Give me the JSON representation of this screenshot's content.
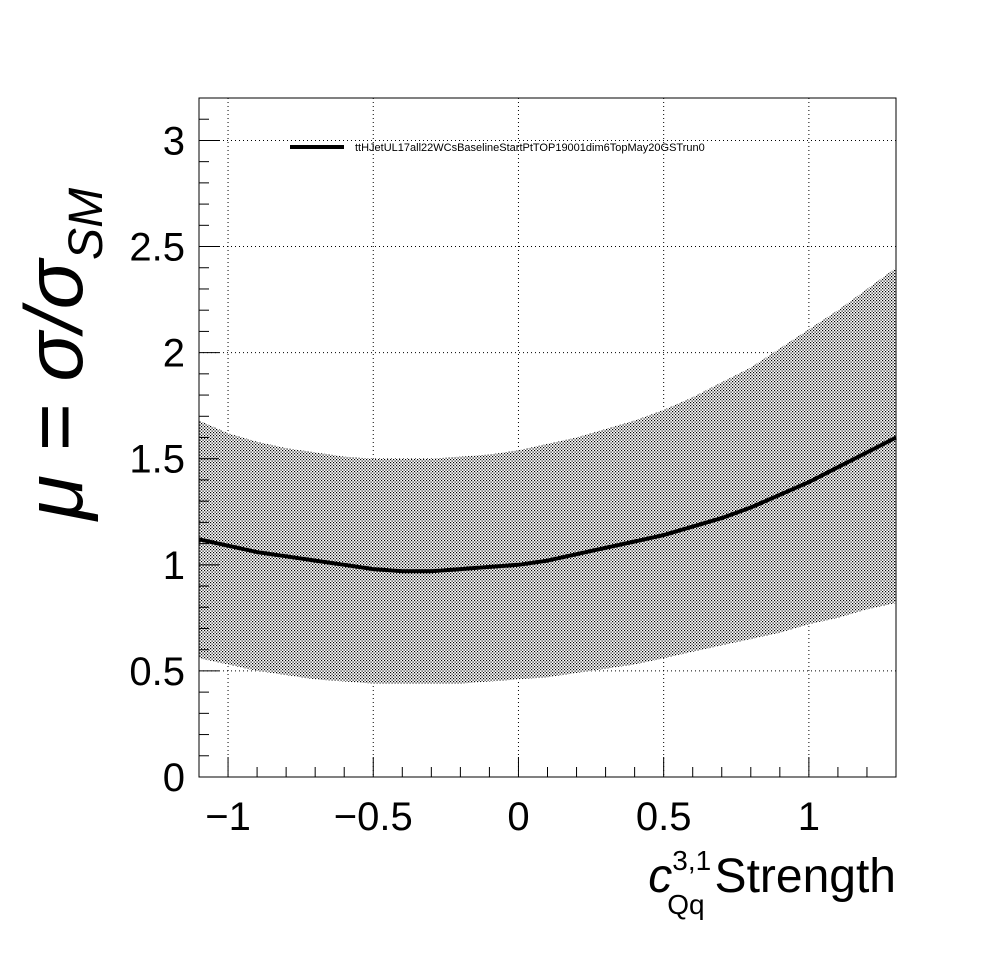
{
  "chart_data": {
    "type": "line",
    "title": "",
    "xlabel_main": "c",
    "xlabel_sup": "3,1",
    "xlabel_sub": "Qq",
    "xlabel_suffix": "Strength",
    "ylabel": "μ = σ/σ",
    "ylabel_sub": "SM",
    "xlim": [
      -1.1,
      1.3
    ],
    "ylim": [
      0,
      3.2
    ],
    "grid": true,
    "legend_position": "top",
    "x_ticks": [
      {
        "value": -1,
        "label": "−1"
      },
      {
        "value": -0.5,
        "label": "−0.5"
      },
      {
        "value": 0,
        "label": "0"
      },
      {
        "value": 0.5,
        "label": "0.5"
      },
      {
        "value": 1,
        "label": "1"
      }
    ],
    "y_ticks": [
      {
        "value": 0,
        "label": "0"
      },
      {
        "value": 0.5,
        "label": "0.5"
      },
      {
        "value": 1,
        "label": "1"
      },
      {
        "value": 1.5,
        "label": "1.5"
      },
      {
        "value": 2,
        "label": "2"
      },
      {
        "value": 2.5,
        "label": "2.5"
      },
      {
        "value": 3,
        "label": "3"
      }
    ],
    "series": [
      {
        "name": "ttHJetUL17all22WCsBaselineStartPtTOP19001dim6TopMay20GSTrun0",
        "color": "#000000",
        "x": [
          -1.1,
          -1.0,
          -0.9,
          -0.8,
          -0.7,
          -0.6,
          -0.5,
          -0.4,
          -0.3,
          -0.2,
          -0.1,
          0.0,
          0.1,
          0.2,
          0.3,
          0.4,
          0.5,
          0.6,
          0.7,
          0.8,
          0.9,
          1.0,
          1.1,
          1.2,
          1.3
        ],
        "y": [
          1.12,
          1.09,
          1.06,
          1.04,
          1.02,
          1.0,
          0.98,
          0.97,
          0.97,
          0.98,
          0.99,
          1.0,
          1.02,
          1.05,
          1.08,
          1.11,
          1.14,
          1.18,
          1.22,
          1.27,
          1.33,
          1.39,
          1.46,
          1.53,
          1.6
        ],
        "band_upper": [
          1.68,
          1.62,
          1.58,
          1.55,
          1.53,
          1.51,
          1.5,
          1.5,
          1.5,
          1.51,
          1.52,
          1.54,
          1.57,
          1.6,
          1.64,
          1.68,
          1.73,
          1.79,
          1.86,
          1.93,
          2.02,
          2.11,
          2.2,
          2.3,
          2.4
        ],
        "band_lower": [
          0.56,
          0.53,
          0.5,
          0.48,
          0.46,
          0.45,
          0.44,
          0.44,
          0.44,
          0.44,
          0.45,
          0.46,
          0.47,
          0.49,
          0.51,
          0.53,
          0.56,
          0.59,
          0.62,
          0.65,
          0.68,
          0.72,
          0.75,
          0.79,
          0.82
        ]
      }
    ]
  }
}
